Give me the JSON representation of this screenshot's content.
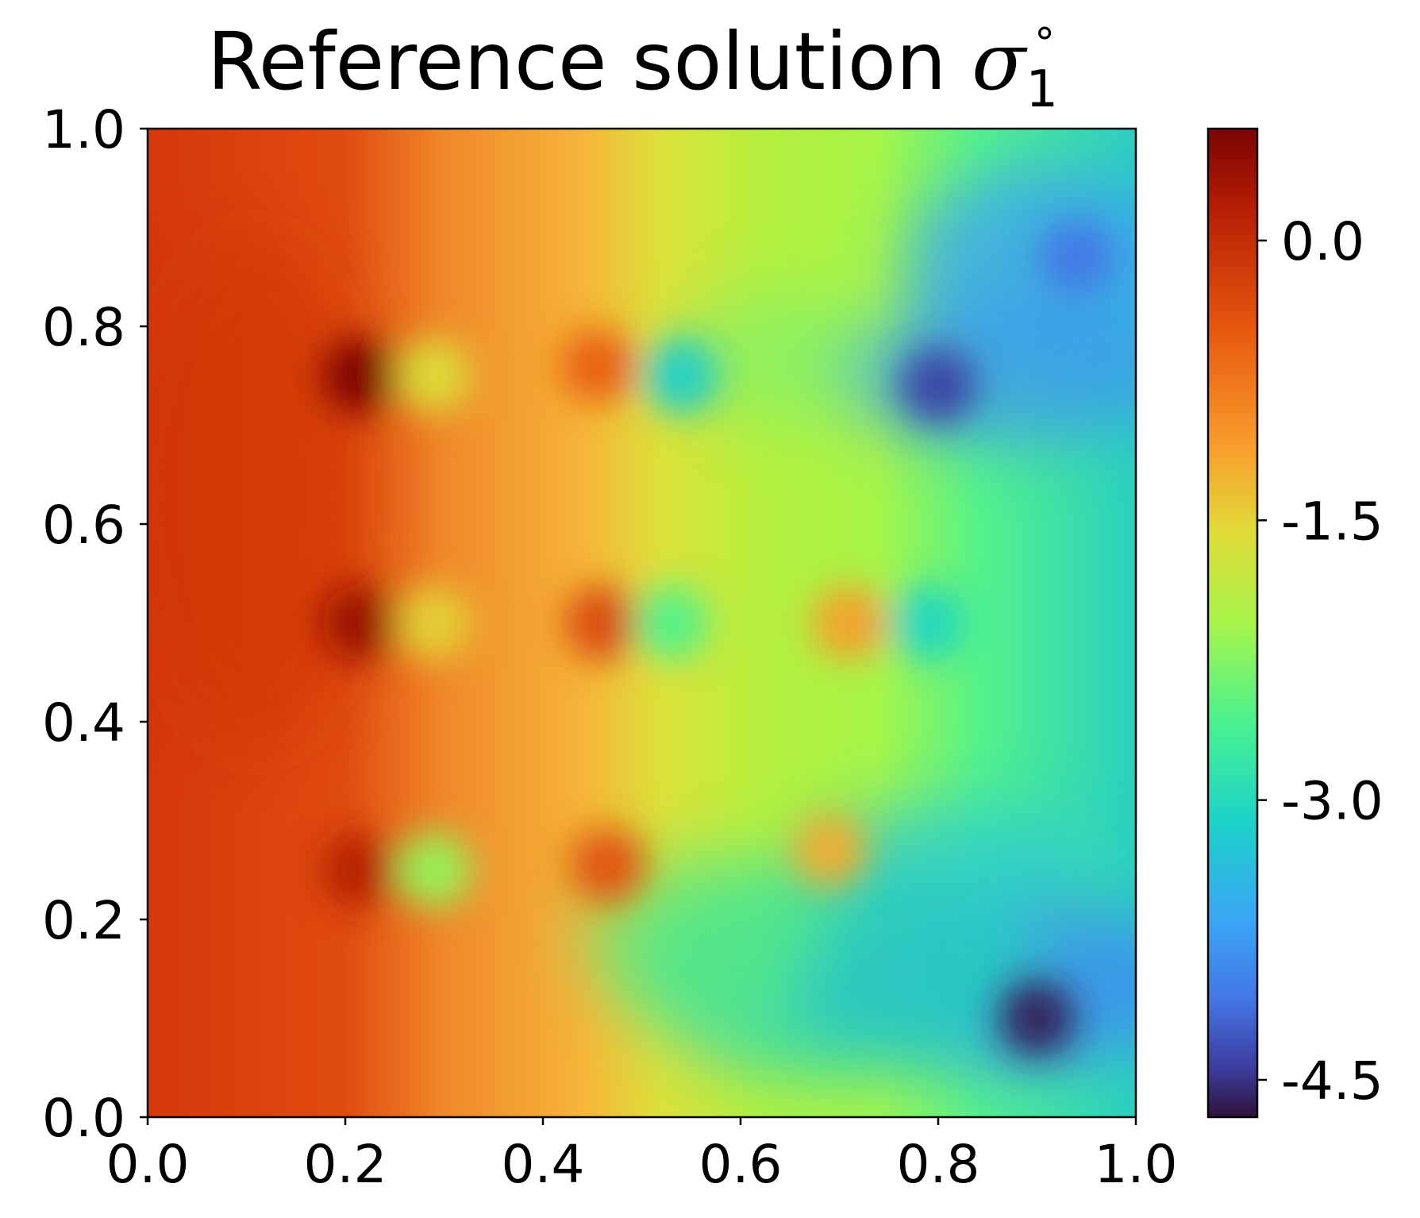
{
  "chart_data": {
    "type": "heatmap",
    "title": {
      "text": "Reference solution ",
      "symbol": "σ",
      "subscript": "1",
      "superscript": "°"
    },
    "xlabel": "",
    "ylabel": "",
    "xlim": [
      0.0,
      1.0
    ],
    "ylim": [
      0.0,
      1.0
    ],
    "x_ticks": [
      0.0,
      0.2,
      0.4,
      0.6,
      0.8,
      1.0
    ],
    "x_tick_labels": [
      "0.0",
      "0.2",
      "0.4",
      "0.6",
      "0.8",
      "1.0"
    ],
    "y_ticks": [
      0.0,
      0.2,
      0.4,
      0.6,
      0.8,
      1.0
    ],
    "y_tick_labels": [
      "0.0",
      "0.2",
      "0.4",
      "0.6",
      "0.8",
      "1.0"
    ],
    "grid": false,
    "colorbar": {
      "colormap": "turbo",
      "range": [
        -4.7,
        0.6
      ],
      "ticks": [
        0.0,
        -1.5,
        -3.0,
        -4.5
      ],
      "tick_labels": [
        "0.0",
        "-1.5",
        "-3.0",
        "-4.5"
      ],
      "placement": "right"
    },
    "field_description_values": {
      "background_trend": [
        {
          "x": 0.0,
          "value": -0.2
        },
        {
          "x": 0.2,
          "value": -0.35
        },
        {
          "x": 0.3,
          "value": -0.9
        },
        {
          "x": 0.45,
          "value": -1.3
        },
        {
          "x": 0.6,
          "value": -1.9
        },
        {
          "x": 0.75,
          "value": -2.3
        },
        {
          "x": 0.9,
          "value": -3.2
        },
        {
          "x": 1.0,
          "value": -3.5
        }
      ],
      "features": [
        {
          "x": 0.215,
          "y": 0.75,
          "value": 0.6
        },
        {
          "x": 0.215,
          "y": 0.5,
          "value": 0.4
        },
        {
          "x": 0.215,
          "y": 0.25,
          "value": 0.2
        },
        {
          "x": 0.29,
          "y": 0.75,
          "value": -1.4
        },
        {
          "x": 0.29,
          "y": 0.5,
          "value": -1.3
        },
        {
          "x": 0.29,
          "y": 0.25,
          "value": -1.9
        },
        {
          "x": 0.455,
          "y": 0.76,
          "value": -0.4
        },
        {
          "x": 0.46,
          "y": 0.5,
          "value": -0.2
        },
        {
          "x": 0.465,
          "y": 0.255,
          "value": -0.3
        },
        {
          "x": 0.54,
          "y": 0.75,
          "value": -2.9
        },
        {
          "x": 0.53,
          "y": 0.5,
          "value": -2.3
        },
        {
          "x": 0.71,
          "y": 0.5,
          "value": -0.9
        },
        {
          "x": 0.69,
          "y": 0.27,
          "value": -1.0
        },
        {
          "x": 0.79,
          "y": 0.5,
          "value": -2.8
        },
        {
          "x": 0.8,
          "y": 0.74,
          "value": -4.3
        },
        {
          "x": 0.9,
          "y": 0.1,
          "value": -4.6
        },
        {
          "x": 0.94,
          "y": 0.87,
          "value": -3.9
        }
      ]
    }
  }
}
